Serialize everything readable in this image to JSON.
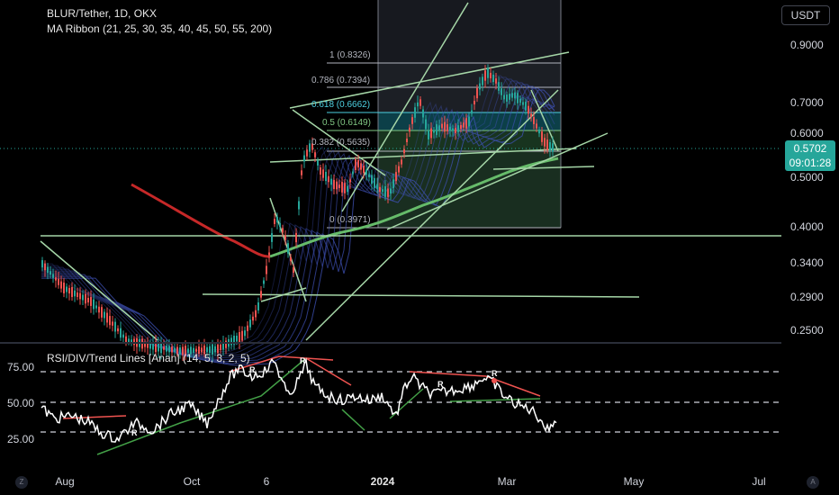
{
  "header": {
    "symbol_line": "BLUR/Tether, 1D, OKX",
    "indicator_line": "MA Ribbon (21, 25, 30, 35, 40, 45, 50, 55, 200)",
    "rsi_line": "RSI/DIV/Trend Lines [Anan] (14, 5, 3, 2, 5)"
  },
  "currency_button": "USDT",
  "price_badge": {
    "price": "0.5702",
    "countdown": "09:01:28"
  },
  "price_axis": [
    "0.9000",
    "0.7000",
    "0.6000",
    "0.5000",
    "0.4000",
    "0.3400",
    "0.2900",
    "0.2500"
  ],
  "rsi_axis": [
    "75.00",
    "50.00",
    "25.00"
  ],
  "time_axis": [
    {
      "label": "Aug",
      "bold": false
    },
    {
      "label": "Oct",
      "bold": false
    },
    {
      "label": "6",
      "bold": false
    },
    {
      "label": "2024",
      "bold": true
    },
    {
      "label": "Mar",
      "bold": false
    },
    {
      "label": "May",
      "bold": false
    },
    {
      "label": "Jul",
      "bold": false
    }
  ],
  "fib_levels": [
    {
      "label": "1 (0.8326)",
      "color": "#b2b5be"
    },
    {
      "label": "0.786 (0.7394)",
      "color": "#b2b5be"
    },
    {
      "label": "0.618 (0.6662)",
      "color": "#4dd0e1"
    },
    {
      "label": "0.5 (0.6149)",
      "color": "#81c784"
    },
    {
      "label": "0.382 (0.5635)",
      "color": "#b2b5be"
    },
    {
      "label": "0 (0.3971)",
      "color": "#b2b5be"
    }
  ],
  "rsi_markers": [
    "R",
    "R",
    "R",
    "R",
    "R"
  ],
  "corner_buttons": {
    "left": "Z",
    "right": "A"
  },
  "colors": {
    "up": "#26a69a",
    "down": "#ef5350",
    "ma200": "#c62828",
    "trend": "#a5d6a7",
    "ribbon": "#3f51b5",
    "background": "#000000"
  }
}
